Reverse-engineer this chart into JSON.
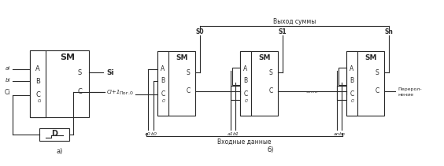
{
  "bg_color": "#ffffff",
  "line_color": "#2a2a2a",
  "title_a": "а)",
  "title_b": "б)",
  "label_SM": "SM",
  "label_D": "D",
  "label_S": "S",
  "label_C": "C",
  "label_A": "A",
  "label_B": "B",
  "label_Si": "Si",
  "label_Ci1": "Ci+1",
  "label_ai": "ai",
  "label_bi": "bi",
  "label_Ci": "Ci",
  "label_Ci_inner": "Ci",
  "label_vyhod": "Выход суммы",
  "label_vhod": "Входные данные",
  "label_S0": "S0",
  "label_S1": "S1",
  "label_Sn": "Sn",
  "label_por": "Пог.0",
  "label_overflow1": "Переpол-",
  "label_overflow2": "нение",
  "label_dots": ".......",
  "label_a0": "a0",
  "label_b0": "b0",
  "label_a1": "a1",
  "label_b1": "b1",
  "label_an": "an",
  "label_bn": "bn",
  "figsize": [
    5.64,
    2.11
  ],
  "dpi": 100
}
